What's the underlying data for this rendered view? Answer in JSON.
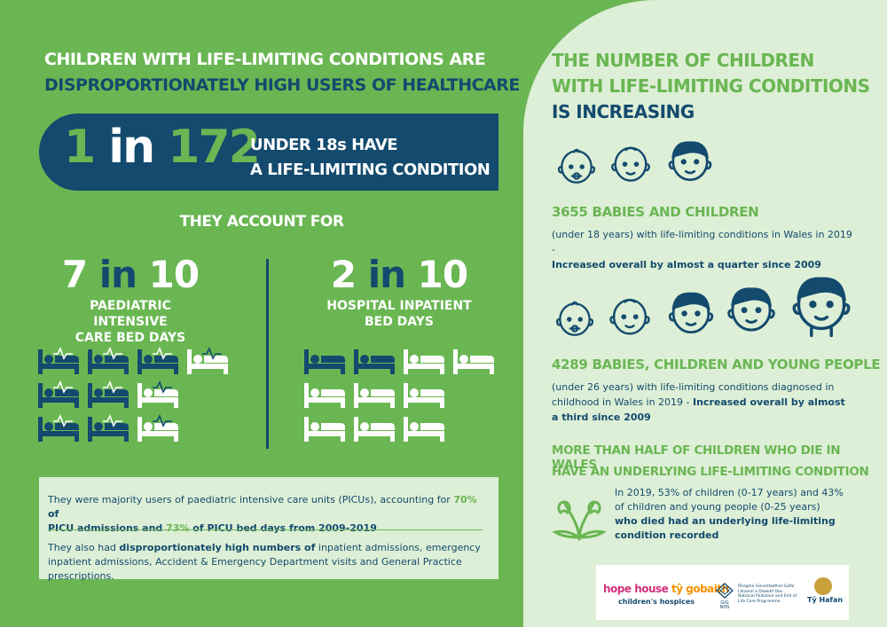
{
  "left": {
    "headline_line1": "CHILDREN WITH LIFE-LIMITING CONDITIONS ARE",
    "headline_line2": "DISPROPORTIONATELY HIGH USERS OF HEALTHCARE",
    "big_stat": {
      "num1": "1",
      "in": "in",
      "num2": "172"
    },
    "big_stat_text_line1": "UNDER 18s HAVE",
    "big_stat_text_line2": "A LIFE-LIMITING CONDITION",
    "account_for": "THEY ACCOUNT FOR",
    "stat1": {
      "num1": "7",
      "in": "in",
      "num2": "10",
      "label_line1": "PAEDIATRIC INTENSIVE",
      "label_line2": "CARE BED DAYS",
      "filled": 7,
      "total": 10
    },
    "stat2": {
      "num1": "2",
      "in": "in",
      "num2": "10",
      "label_line1": "HOSPITAL INPATIENT",
      "label_line2": "BED DAYS",
      "filled": 2,
      "total": 10
    },
    "note1_a": "They were majority users of paediatric intensive care units (PICUs), accounting for ",
    "note1_b": "70%",
    "note1_c": " of",
    "note1_d": "PICU admissions and ",
    "note1_e": "73%",
    "note1_f": " of PICU bed days from 2009-2019",
    "note2_a": "They also had ",
    "note2_b": "disproportionately high numbers of",
    "note2_c": " inpatient admissions, emergency inpatient admissions, Accident & Emergency Department visits and General Practice prescriptions."
  },
  "right": {
    "headline_line1": "THE NUMBER OF CHILDREN",
    "headline_line2": "WITH LIFE-LIMITING CONDITIONS",
    "headline_line3": "IS INCREASING",
    "stat1_title": "3655 BABIES AND CHILDREN",
    "stat1_text": "(under 18 years) with life-limiting conditions in Wales in 2019 -",
    "stat1_bold": "Increased overall by almost a quarter since 2009",
    "stat2_title": "4289 BABIES, CHILDREN AND YOUNG PEOPLE",
    "stat2_text": "(under 26 years) with life-limiting conditions diagnosed in childhood in Wales in 2019 - ",
    "stat2_bold": "Increased overall by almost a third since 2009",
    "sub_line1": "MORE THAN HALF OF CHILDREN WHO DIE IN WALES",
    "sub_line2": "HAVE AN UNDERLYING LIFE-LIMITING CONDITION",
    "flower_text": "In 2019, 53% of children (0-17 years) and 43% of children and young people (0-25 years)",
    "flower_bold": "who died had an underlying life-limiting condition recorded"
  },
  "logos": {
    "hope_house": "hope house",
    "ty_gobaith": "tŷ gobaith",
    "hospices": "children's hospices",
    "nhs_text": "Rhaglen Genedlaethol Gofal Lliniarol a Diwedd Oes National Palliative and End of Life Care Programme",
    "ty_hafan": "Tŷ Hafan"
  },
  "colors": {
    "green": "#6ab653",
    "navy": "#134a6e",
    "pale_green": "#ddefd6"
  }
}
